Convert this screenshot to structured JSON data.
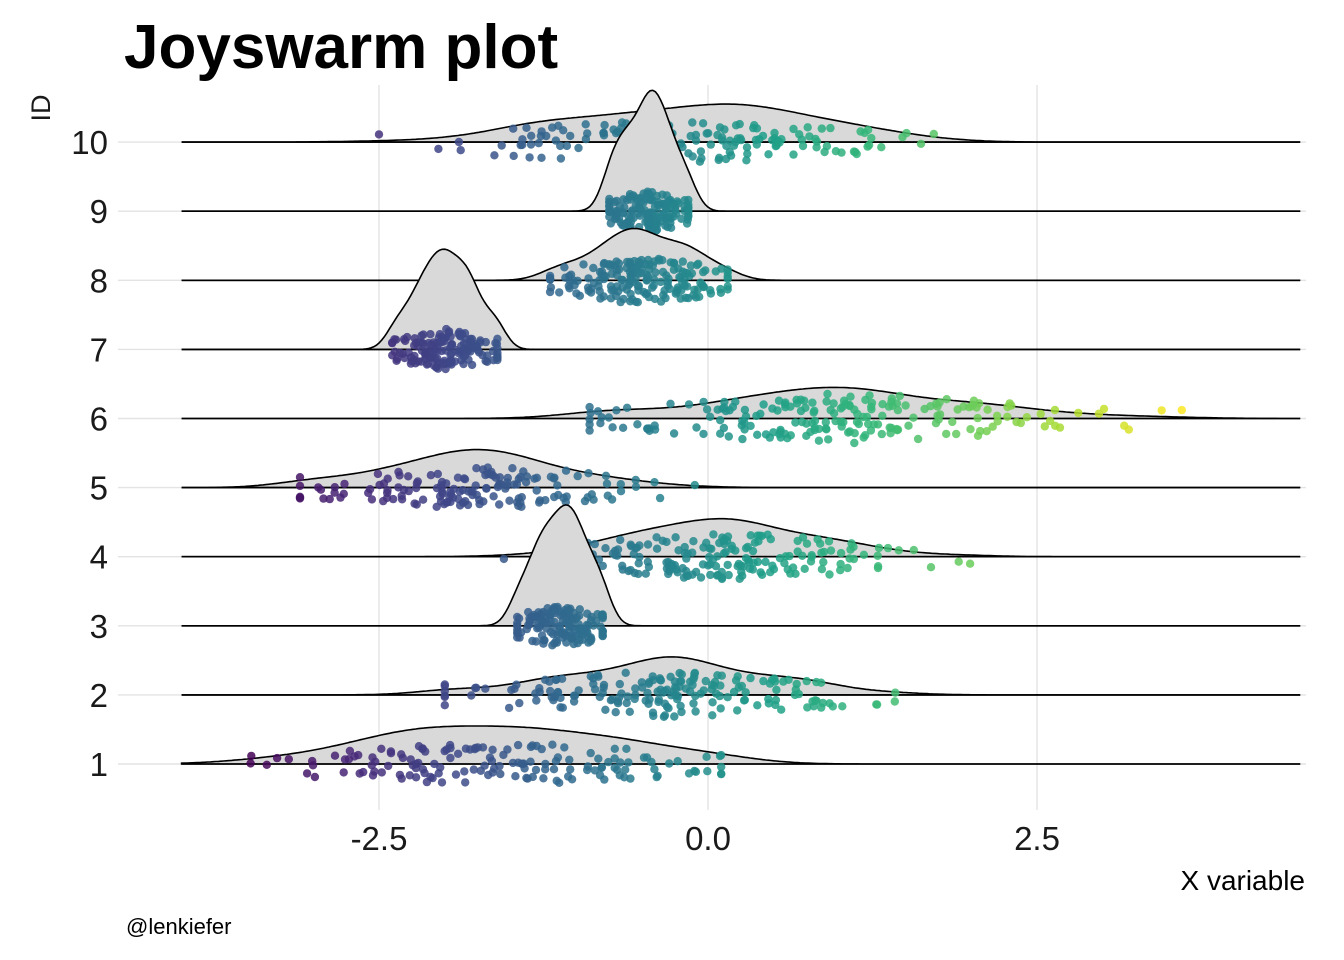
{
  "chart_data": {
    "type": "joyswarm",
    "title": "Joyswarm plot",
    "xlabel": "X variable",
    "ylabel": "ID",
    "caption": "@lenkiefer",
    "xlim": [
      -4.0,
      4.5
    ],
    "x_ticks": [
      -2.5,
      0.0,
      2.5
    ],
    "x_tick_labels": [
      "-2.5",
      "0.0",
      "2.5"
    ],
    "categories": [
      "1",
      "2",
      "3",
      "4",
      "5",
      "6",
      "7",
      "8",
      "9",
      "10"
    ],
    "grid": true,
    "colormap": "viridis",
    "color_range": [
      -3.5,
      3.6
    ],
    "ridge_fill": "#d9d9d9",
    "series": [
      {
        "id": "1",
        "mean": -1.6,
        "sd": 0.9,
        "n": 150,
        "scale": 0.55,
        "min": -3.5,
        "max": 0.1
      },
      {
        "id": "2",
        "mean": -0.4,
        "sd": 0.7,
        "n": 180,
        "scale": 0.55,
        "min": -2.0,
        "max": 1.7
      },
      {
        "id": "3",
        "mean": -1.1,
        "sd": 0.2,
        "n": 150,
        "scale": 1.75,
        "min": -1.45,
        "max": -0.8
      },
      {
        "id": "4",
        "mean": 0.2,
        "sd": 0.7,
        "n": 180,
        "scale": 0.55,
        "min": -2.2,
        "max": 2.0
      },
      {
        "id": "5",
        "mean": -1.7,
        "sd": 0.7,
        "n": 150,
        "scale": 0.55,
        "min": -3.1,
        "max": -0.1
      },
      {
        "id": "6",
        "mean": 1.0,
        "sd": 0.9,
        "n": 200,
        "scale": 0.45,
        "min": -0.9,
        "max": 3.6
      },
      {
        "id": "7",
        "mean": -2.0,
        "sd": 0.2,
        "n": 150,
        "scale": 1.45,
        "min": -2.4,
        "max": -1.6
      },
      {
        "id": "8",
        "mean": -0.5,
        "sd": 0.35,
        "n": 180,
        "scale": 0.75,
        "min": -1.2,
        "max": 0.15
      },
      {
        "id": "9",
        "mean": -0.45,
        "sd": 0.18,
        "n": 150,
        "scale": 1.75,
        "min": -0.75,
        "max": -0.15
      },
      {
        "id": "10",
        "mean": -0.3,
        "sd": 0.9,
        "n": 150,
        "scale": 0.55,
        "min": -2.5,
        "max": 1.8
      }
    ]
  }
}
